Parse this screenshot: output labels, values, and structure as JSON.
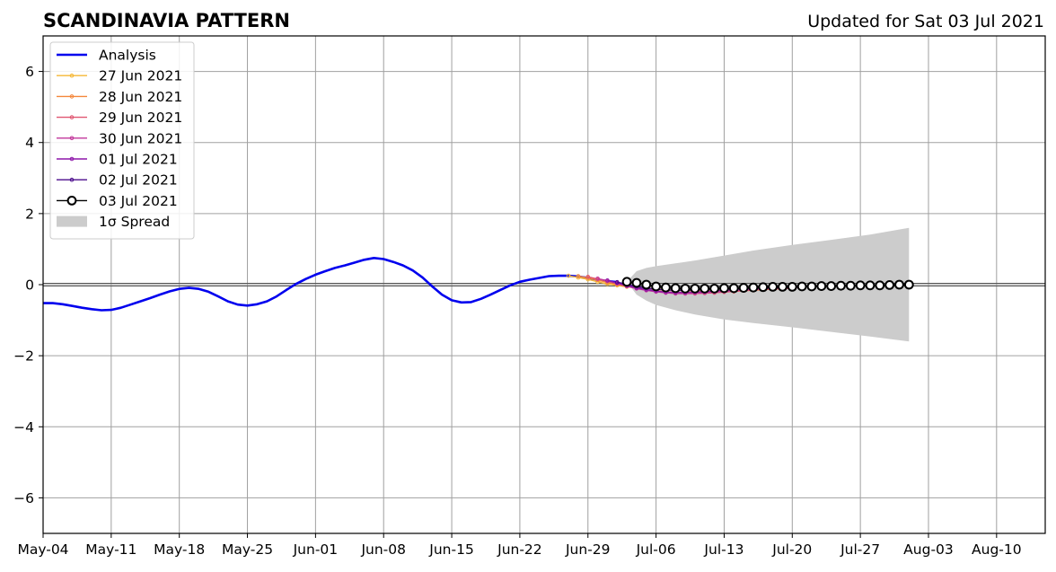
{
  "chart_data": {
    "type": "line",
    "title": "SCANDINAVIA PATTERN",
    "subtitle": "Updated for Sat 03 Jul 2021",
    "xlabel": "",
    "ylabel": "",
    "x_range": [
      "2021-05-04",
      "2021-08-15"
    ],
    "ylim": [
      -7,
      7
    ],
    "y_ticks": [
      -6,
      -4,
      -2,
      0,
      2,
      4,
      6
    ],
    "y_tick_labels": [
      "−6",
      "−4",
      "−2",
      "0",
      "2",
      "4",
      "6"
    ],
    "x_ticks": [
      {
        "date": "2021-05-04",
        "label": "May-04"
      },
      {
        "date": "2021-05-11",
        "label": "May-11"
      },
      {
        "date": "2021-05-18",
        "label": "May-18"
      },
      {
        "date": "2021-05-25",
        "label": "May-25"
      },
      {
        "date": "2021-06-01",
        "label": "Jun-01"
      },
      {
        "date": "2021-06-08",
        "label": "Jun-08"
      },
      {
        "date": "2021-06-15",
        "label": "Jun-15"
      },
      {
        "date": "2021-06-22",
        "label": "Jun-22"
      },
      {
        "date": "2021-06-29",
        "label": "Jun-29"
      },
      {
        "date": "2021-07-06",
        "label": "Jul-06"
      },
      {
        "date": "2021-07-13",
        "label": "Jul-13"
      },
      {
        "date": "2021-07-20",
        "label": "Jul-20"
      },
      {
        "date": "2021-07-27",
        "label": "Jul-27"
      },
      {
        "date": "2021-08-03",
        "label": "Aug-03"
      },
      {
        "date": "2021-08-10",
        "label": "Aug-10"
      }
    ],
    "grid": true,
    "legend_position": "top-left",
    "zero_line": true,
    "analysis": {
      "name": "Analysis",
      "color": "#0000ee",
      "points": [
        [
          "2021-05-04",
          -0.52
        ],
        [
          "2021-05-05",
          -0.52
        ],
        [
          "2021-05-06",
          -0.55
        ],
        [
          "2021-05-07",
          -0.6
        ],
        [
          "2021-05-08",
          -0.65
        ],
        [
          "2021-05-09",
          -0.69
        ],
        [
          "2021-05-10",
          -0.72
        ],
        [
          "2021-05-11",
          -0.71
        ],
        [
          "2021-05-12",
          -0.65
        ],
        [
          "2021-05-13",
          -0.56
        ],
        [
          "2021-05-14",
          -0.47
        ],
        [
          "2021-05-15",
          -0.38
        ],
        [
          "2021-05-16",
          -0.28
        ],
        [
          "2021-05-17",
          -0.19
        ],
        [
          "2021-05-18",
          -0.12
        ],
        [
          "2021-05-19",
          -0.09
        ],
        [
          "2021-05-20",
          -0.12
        ],
        [
          "2021-05-21",
          -0.2
        ],
        [
          "2021-05-22",
          -0.33
        ],
        [
          "2021-05-23",
          -0.47
        ],
        [
          "2021-05-24",
          -0.56
        ],
        [
          "2021-05-25",
          -0.59
        ],
        [
          "2021-05-26",
          -0.55
        ],
        [
          "2021-05-27",
          -0.47
        ],
        [
          "2021-05-28",
          -0.33
        ],
        [
          "2021-05-29",
          -0.15
        ],
        [
          "2021-05-30",
          0.02
        ],
        [
          "2021-05-31",
          0.16
        ],
        [
          "2021-06-01",
          0.28
        ],
        [
          "2021-06-02",
          0.38
        ],
        [
          "2021-06-03",
          0.47
        ],
        [
          "2021-06-04",
          0.54
        ],
        [
          "2021-06-05",
          0.62
        ],
        [
          "2021-06-06",
          0.7
        ],
        [
          "2021-06-07",
          0.75
        ],
        [
          "2021-06-08",
          0.72
        ],
        [
          "2021-06-09",
          0.64
        ],
        [
          "2021-06-10",
          0.54
        ],
        [
          "2021-06-11",
          0.4
        ],
        [
          "2021-06-12",
          0.2
        ],
        [
          "2021-06-13",
          -0.05
        ],
        [
          "2021-06-14",
          -0.28
        ],
        [
          "2021-06-15",
          -0.44
        ],
        [
          "2021-06-16",
          -0.5
        ],
        [
          "2021-06-17",
          -0.49
        ],
        [
          "2021-06-18",
          -0.4
        ],
        [
          "2021-06-19",
          -0.28
        ],
        [
          "2021-06-20",
          -0.15
        ],
        [
          "2021-06-21",
          -0.02
        ],
        [
          "2021-06-22",
          0.08
        ],
        [
          "2021-06-23",
          0.14
        ],
        [
          "2021-06-24",
          0.19
        ],
        [
          "2021-06-25",
          0.24
        ],
        [
          "2021-06-26",
          0.25
        ],
        [
          "2021-06-27",
          0.25
        ],
        [
          "2021-06-28",
          0.23
        ],
        [
          "2021-06-29",
          0.19
        ],
        [
          "2021-06-30",
          0.14
        ],
        [
          "2021-07-01",
          0.1
        ],
        [
          "2021-07-02",
          0.07
        ]
      ]
    },
    "forecasts": [
      {
        "name": "27 Jun 2021",
        "color": "#f5b735",
        "points": [
          [
            "2021-06-27",
            0.25
          ],
          [
            "2021-06-28",
            0.2
          ],
          [
            "2021-06-29",
            0.15
          ],
          [
            "2021-06-30",
            0.08
          ],
          [
            "2021-07-01",
            0.02
          ],
          [
            "2021-07-02",
            -0.02
          ],
          [
            "2021-07-03",
            -0.06
          ],
          [
            "2021-07-04",
            -0.08
          ],
          [
            "2021-07-05",
            -0.1
          ],
          [
            "2021-07-06",
            -0.12
          ],
          [
            "2021-07-07",
            -0.14
          ],
          [
            "2021-07-08",
            -0.16
          ],
          [
            "2021-07-09",
            -0.17
          ],
          [
            "2021-07-10",
            -0.18
          ],
          [
            "2021-07-11",
            -0.18
          ],
          [
            "2021-07-12",
            -0.17
          ],
          [
            "2021-07-13",
            -0.16
          ],
          [
            "2021-07-14",
            -0.15
          ],
          [
            "2021-07-15",
            -0.14
          ],
          [
            "2021-07-16",
            -0.13
          ],
          [
            "2021-07-17",
            -0.12
          ],
          [
            "2021-07-18",
            -0.11
          ]
        ]
      },
      {
        "name": "28 Jun 2021",
        "color": "#f4873b",
        "points": [
          [
            "2021-06-28",
            0.24
          ],
          [
            "2021-06-29",
            0.19
          ],
          [
            "2021-06-30",
            0.13
          ],
          [
            "2021-07-01",
            0.06
          ],
          [
            "2021-07-02",
            0.0
          ],
          [
            "2021-07-03",
            -0.05
          ],
          [
            "2021-07-04",
            -0.1
          ],
          [
            "2021-07-05",
            -0.14
          ],
          [
            "2021-07-06",
            -0.17
          ],
          [
            "2021-07-07",
            -0.2
          ],
          [
            "2021-07-08",
            -0.22
          ],
          [
            "2021-07-09",
            -0.23
          ],
          [
            "2021-07-10",
            -0.23
          ],
          [
            "2021-07-11",
            -0.22
          ],
          [
            "2021-07-12",
            -0.21
          ],
          [
            "2021-07-13",
            -0.2
          ],
          [
            "2021-07-14",
            -0.19
          ],
          [
            "2021-07-15",
            -0.17
          ],
          [
            "2021-07-16",
            -0.16
          ],
          [
            "2021-07-17",
            -0.14
          ],
          [
            "2021-07-18",
            -0.13
          ],
          [
            "2021-07-19",
            -0.12
          ]
        ]
      },
      {
        "name": "29 Jun 2021",
        "color": "#e05671",
        "points": [
          [
            "2021-06-29",
            0.22
          ],
          [
            "2021-06-30",
            0.16
          ],
          [
            "2021-07-01",
            0.1
          ],
          [
            "2021-07-02",
            0.03
          ],
          [
            "2021-07-03",
            -0.04
          ],
          [
            "2021-07-04",
            -0.1
          ],
          [
            "2021-07-05",
            -0.15
          ],
          [
            "2021-07-06",
            -0.19
          ],
          [
            "2021-07-07",
            -0.22
          ],
          [
            "2021-07-08",
            -0.24
          ],
          [
            "2021-07-09",
            -0.25
          ],
          [
            "2021-07-10",
            -0.25
          ],
          [
            "2021-07-11",
            -0.24
          ],
          [
            "2021-07-12",
            -0.23
          ],
          [
            "2021-07-13",
            -0.21
          ],
          [
            "2021-07-14",
            -0.19
          ],
          [
            "2021-07-15",
            -0.17
          ],
          [
            "2021-07-16",
            -0.15
          ],
          [
            "2021-07-17",
            -0.13
          ],
          [
            "2021-07-18",
            -0.12
          ],
          [
            "2021-07-19",
            -0.11
          ],
          [
            "2021-07-20",
            -0.1
          ]
        ]
      },
      {
        "name": "30 Jun 2021",
        "color": "#c2379b",
        "points": [
          [
            "2021-06-30",
            0.17
          ],
          [
            "2021-07-01",
            0.11
          ],
          [
            "2021-07-02",
            0.04
          ],
          [
            "2021-07-03",
            -0.04
          ],
          [
            "2021-07-04",
            -0.11
          ],
          [
            "2021-07-05",
            -0.16
          ],
          [
            "2021-07-06",
            -0.2
          ],
          [
            "2021-07-07",
            -0.23
          ],
          [
            "2021-07-08",
            -0.25
          ],
          [
            "2021-07-09",
            -0.25
          ],
          [
            "2021-07-10",
            -0.24
          ],
          [
            "2021-07-11",
            -0.23
          ],
          [
            "2021-07-12",
            -0.21
          ],
          [
            "2021-07-13",
            -0.19
          ],
          [
            "2021-07-14",
            -0.17
          ],
          [
            "2021-07-15",
            -0.15
          ],
          [
            "2021-07-16",
            -0.13
          ],
          [
            "2021-07-17",
            -0.11
          ],
          [
            "2021-07-18",
            -0.1
          ],
          [
            "2021-07-19",
            -0.09
          ],
          [
            "2021-07-20",
            -0.08
          ],
          [
            "2021-07-21",
            -0.07
          ]
        ]
      },
      {
        "name": "01 Jul 2021",
        "color": "#8e17aa",
        "points": [
          [
            "2021-07-01",
            0.12
          ],
          [
            "2021-07-02",
            0.05
          ],
          [
            "2021-07-03",
            -0.03
          ],
          [
            "2021-07-04",
            -0.09
          ],
          [
            "2021-07-05",
            -0.14
          ],
          [
            "2021-07-06",
            -0.18
          ],
          [
            "2021-07-07",
            -0.21
          ],
          [
            "2021-07-08",
            -0.22
          ],
          [
            "2021-07-09",
            -0.22
          ],
          [
            "2021-07-10",
            -0.21
          ],
          [
            "2021-07-11",
            -0.2
          ],
          [
            "2021-07-12",
            -0.18
          ],
          [
            "2021-07-13",
            -0.16
          ],
          [
            "2021-07-14",
            -0.14
          ],
          [
            "2021-07-15",
            -0.12
          ],
          [
            "2021-07-16",
            -0.11
          ],
          [
            "2021-07-17",
            -0.1
          ],
          [
            "2021-07-18",
            -0.09
          ],
          [
            "2021-07-19",
            -0.08
          ],
          [
            "2021-07-20",
            -0.07
          ],
          [
            "2021-07-21",
            -0.06
          ],
          [
            "2021-07-22",
            -0.05
          ]
        ]
      },
      {
        "name": "02 Jul 2021",
        "color": "#4b0c8c",
        "points": [
          [
            "2021-07-02",
            0.07
          ],
          [
            "2021-07-03",
            0.01
          ],
          [
            "2021-07-04",
            -0.05
          ],
          [
            "2021-07-05",
            -0.1
          ],
          [
            "2021-07-06",
            -0.13
          ],
          [
            "2021-07-07",
            -0.15
          ],
          [
            "2021-07-08",
            -0.16
          ],
          [
            "2021-07-09",
            -0.16
          ],
          [
            "2021-07-10",
            -0.15
          ],
          [
            "2021-07-11",
            -0.14
          ],
          [
            "2021-07-12",
            -0.13
          ],
          [
            "2021-07-13",
            -0.12
          ],
          [
            "2021-07-14",
            -0.11
          ],
          [
            "2021-07-15",
            -0.1
          ],
          [
            "2021-07-16",
            -0.09
          ],
          [
            "2021-07-17",
            -0.08
          ],
          [
            "2021-07-18",
            -0.07
          ],
          [
            "2021-07-19",
            -0.06
          ],
          [
            "2021-07-20",
            -0.06
          ],
          [
            "2021-07-21",
            -0.05
          ],
          [
            "2021-07-22",
            -0.05
          ],
          [
            "2021-07-23",
            -0.04
          ]
        ]
      },
      {
        "name": "03 Jul 2021",
        "color": "#000000",
        "hollow_markers": true,
        "points": [
          [
            "2021-07-03",
            0.08
          ],
          [
            "2021-07-04",
            0.05
          ],
          [
            "2021-07-05",
            0.0
          ],
          [
            "2021-07-06",
            -0.05
          ],
          [
            "2021-07-07",
            -0.08
          ],
          [
            "2021-07-08",
            -0.1
          ],
          [
            "2021-07-09",
            -0.11
          ],
          [
            "2021-07-10",
            -0.11
          ],
          [
            "2021-07-11",
            -0.11
          ],
          [
            "2021-07-12",
            -0.11
          ],
          [
            "2021-07-13",
            -0.1
          ],
          [
            "2021-07-14",
            -0.1
          ],
          [
            "2021-07-15",
            -0.09
          ],
          [
            "2021-07-16",
            -0.08
          ],
          [
            "2021-07-17",
            -0.07
          ],
          [
            "2021-07-18",
            -0.06
          ],
          [
            "2021-07-19",
            -0.06
          ],
          [
            "2021-07-20",
            -0.06
          ],
          [
            "2021-07-21",
            -0.05
          ],
          [
            "2021-07-22",
            -0.05
          ],
          [
            "2021-07-23",
            -0.04
          ],
          [
            "2021-07-24",
            -0.04
          ],
          [
            "2021-07-25",
            -0.03
          ],
          [
            "2021-07-26",
            -0.03
          ],
          [
            "2021-07-27",
            -0.02
          ],
          [
            "2021-07-28",
            -0.02
          ],
          [
            "2021-07-29",
            -0.02
          ],
          [
            "2021-07-30",
            -0.01
          ],
          [
            "2021-07-31",
            0.0
          ],
          [
            "2021-08-01",
            0.0
          ]
        ]
      }
    ],
    "spread": {
      "name": "1σ Spread",
      "color": "#cccccc",
      "points": [
        [
          "2021-07-03",
          0.08,
          0.08
        ],
        [
          "2021-07-04",
          0.38,
          -0.28
        ],
        [
          "2021-07-05",
          0.47,
          -0.45
        ],
        [
          "2021-07-06",
          0.52,
          -0.57
        ],
        [
          "2021-07-08",
          0.6,
          -0.72
        ],
        [
          "2021-07-10",
          0.68,
          -0.84
        ],
        [
          "2021-07-13",
          0.82,
          -0.98
        ],
        [
          "2021-07-16",
          0.96,
          -1.08
        ],
        [
          "2021-07-20",
          1.12,
          -1.2
        ],
        [
          "2021-07-24",
          1.26,
          -1.33
        ],
        [
          "2021-07-28",
          1.41,
          -1.46
        ],
        [
          "2021-08-01",
          1.6,
          -1.6
        ]
      ]
    }
  }
}
